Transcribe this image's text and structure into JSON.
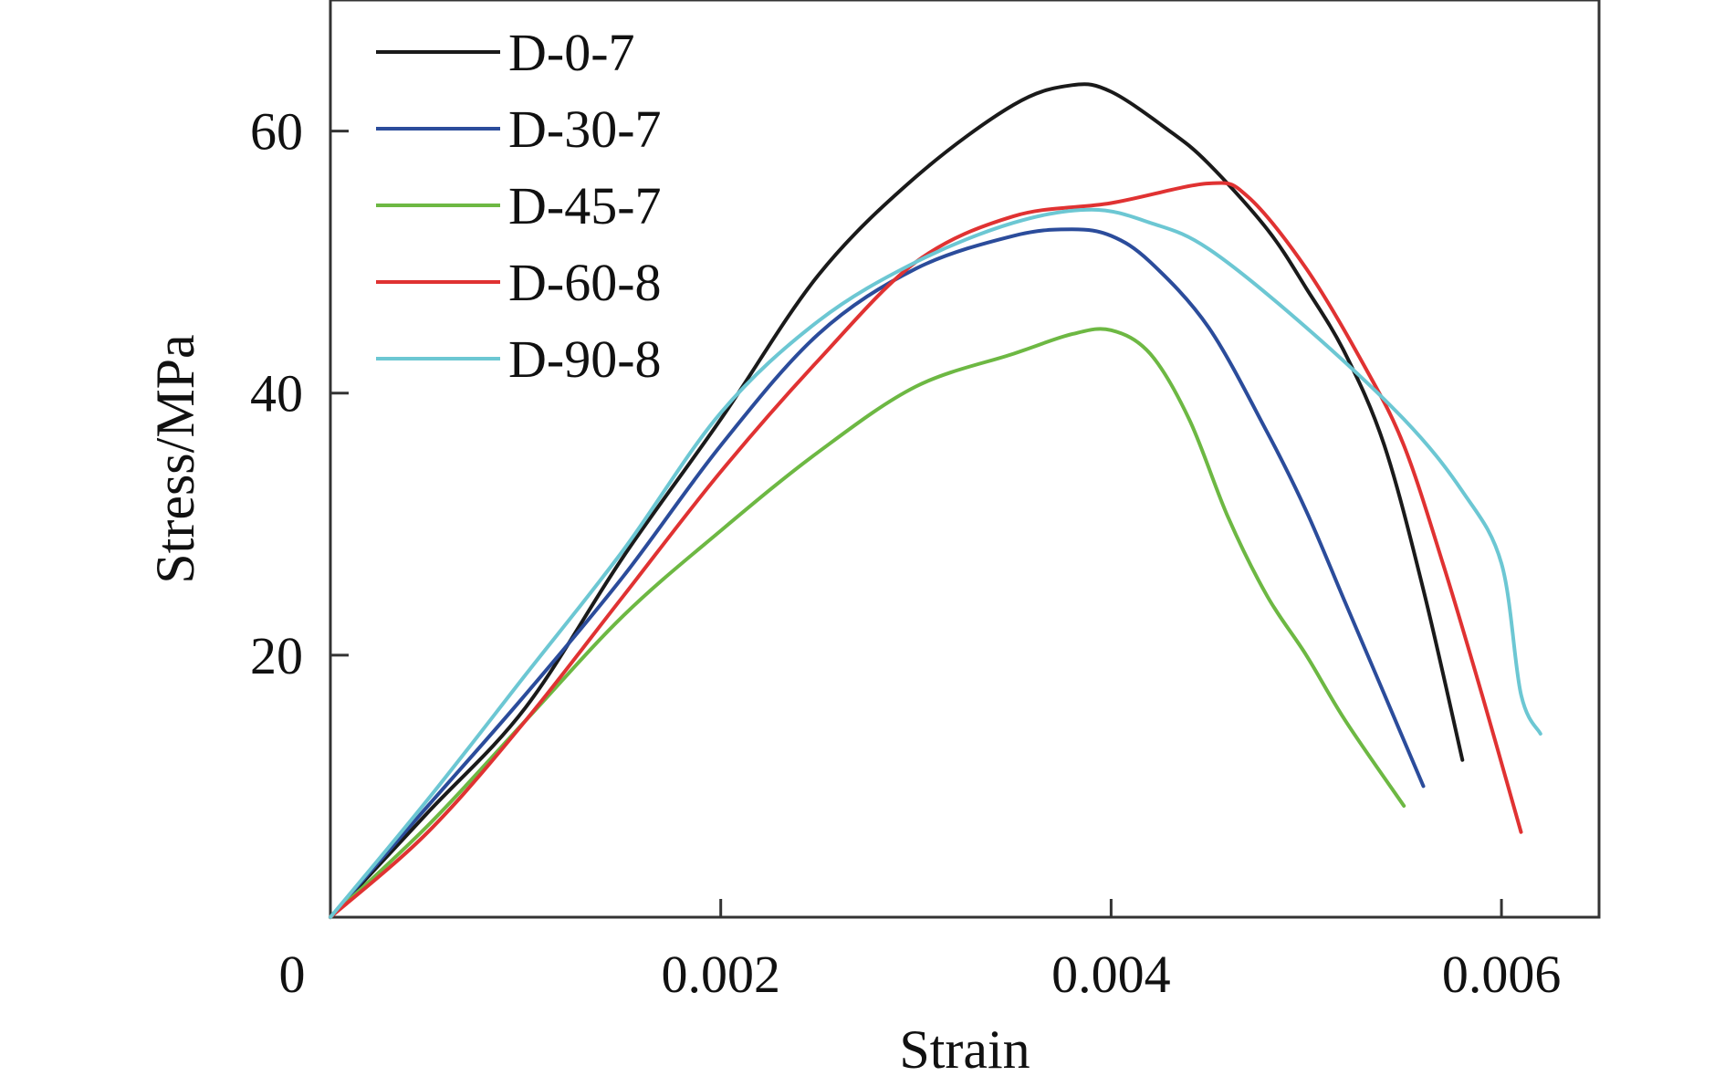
{
  "chart_data": {
    "type": "line",
    "xlabel": "Strain",
    "ylabel": "Stress/MPa",
    "xlim": [
      0,
      0.0065
    ],
    "ylim": [
      0,
      70
    ],
    "x_ticks": [
      {
        "value": 0,
        "label": "0"
      },
      {
        "value": 0.002,
        "label": "0.002"
      },
      {
        "value": 0.004,
        "label": "0.004"
      },
      {
        "value": 0.006,
        "label": "0.006"
      }
    ],
    "y_ticks": [
      {
        "value": 20,
        "label": "20"
      },
      {
        "value": 40,
        "label": "40"
      },
      {
        "value": 60,
        "label": "60"
      }
    ],
    "grid": false,
    "legend_position": "top-left",
    "series": [
      {
        "name": "D-0-7",
        "color": "#1a1a1a",
        "points": [
          [
            0,
            0
          ],
          [
            0.0005,
            8
          ],
          [
            0.001,
            16
          ],
          [
            0.0015,
            27.5
          ],
          [
            0.002,
            38
          ],
          [
            0.0025,
            49
          ],
          [
            0.003,
            56.5
          ],
          [
            0.0035,
            62
          ],
          [
            0.0038,
            63.5
          ],
          [
            0.004,
            63
          ],
          [
            0.0043,
            60
          ],
          [
            0.0045,
            57.5
          ],
          [
            0.0048,
            52.5
          ],
          [
            0.005,
            48
          ],
          [
            0.0052,
            43
          ],
          [
            0.0054,
            36
          ],
          [
            0.0056,
            25
          ],
          [
            0.0058,
            12
          ]
        ]
      },
      {
        "name": "D-30-7",
        "color": "#2b4c9b",
        "points": [
          [
            0,
            0
          ],
          [
            0.0005,
            8.5
          ],
          [
            0.001,
            17
          ],
          [
            0.0015,
            26
          ],
          [
            0.002,
            36
          ],
          [
            0.0025,
            44.5
          ],
          [
            0.003,
            49.5
          ],
          [
            0.0035,
            52
          ],
          [
            0.0038,
            52.5
          ],
          [
            0.004,
            52
          ],
          [
            0.0042,
            50
          ],
          [
            0.0045,
            45
          ],
          [
            0.0048,
            37
          ],
          [
            0.005,
            31
          ],
          [
            0.0052,
            24
          ],
          [
            0.0054,
            17
          ],
          [
            0.0056,
            10
          ]
        ]
      },
      {
        "name": "D-45-7",
        "color": "#6db843",
        "points": [
          [
            0,
            0
          ],
          [
            0.0005,
            7
          ],
          [
            0.001,
            15
          ],
          [
            0.0015,
            23
          ],
          [
            0.002,
            29.5
          ],
          [
            0.0025,
            35.5
          ],
          [
            0.003,
            40.5
          ],
          [
            0.0035,
            43
          ],
          [
            0.0038,
            44.5
          ],
          [
            0.004,
            44.8
          ],
          [
            0.0042,
            43
          ],
          [
            0.0044,
            38
          ],
          [
            0.0046,
            30.5
          ],
          [
            0.0048,
            24.5
          ],
          [
            0.005,
            20
          ],
          [
            0.0052,
            15
          ],
          [
            0.0055,
            8.5
          ]
        ]
      },
      {
        "name": "D-60-8",
        "color": "#e03232",
        "points": [
          [
            0,
            0
          ],
          [
            0.0005,
            6.5
          ],
          [
            0.001,
            15
          ],
          [
            0.0015,
            24.5
          ],
          [
            0.002,
            34
          ],
          [
            0.0025,
            42.5
          ],
          [
            0.003,
            50
          ],
          [
            0.0035,
            53.5
          ],
          [
            0.004,
            54.5
          ],
          [
            0.0045,
            56
          ],
          [
            0.0047,
            55
          ],
          [
            0.005,
            49.5
          ],
          [
            0.0053,
            42
          ],
          [
            0.0055,
            36
          ],
          [
            0.0057,
            27
          ],
          [
            0.0059,
            17
          ],
          [
            0.0061,
            6.5
          ]
        ]
      },
      {
        "name": "D-90-8",
        "color": "#6cc7d3",
        "points": [
          [
            0,
            0
          ],
          [
            0.0005,
            9
          ],
          [
            0.001,
            18.5
          ],
          [
            0.0015,
            28
          ],
          [
            0.002,
            38.5
          ],
          [
            0.0025,
            45.5
          ],
          [
            0.003,
            50
          ],
          [
            0.0035,
            53
          ],
          [
            0.0039,
            54
          ],
          [
            0.0042,
            53
          ],
          [
            0.0045,
            51
          ],
          [
            0.005,
            45
          ],
          [
            0.0055,
            38
          ],
          [
            0.0058,
            32.5
          ],
          [
            0.006,
            27
          ],
          [
            0.0061,
            17
          ],
          [
            0.0062,
            14
          ]
        ]
      }
    ]
  }
}
